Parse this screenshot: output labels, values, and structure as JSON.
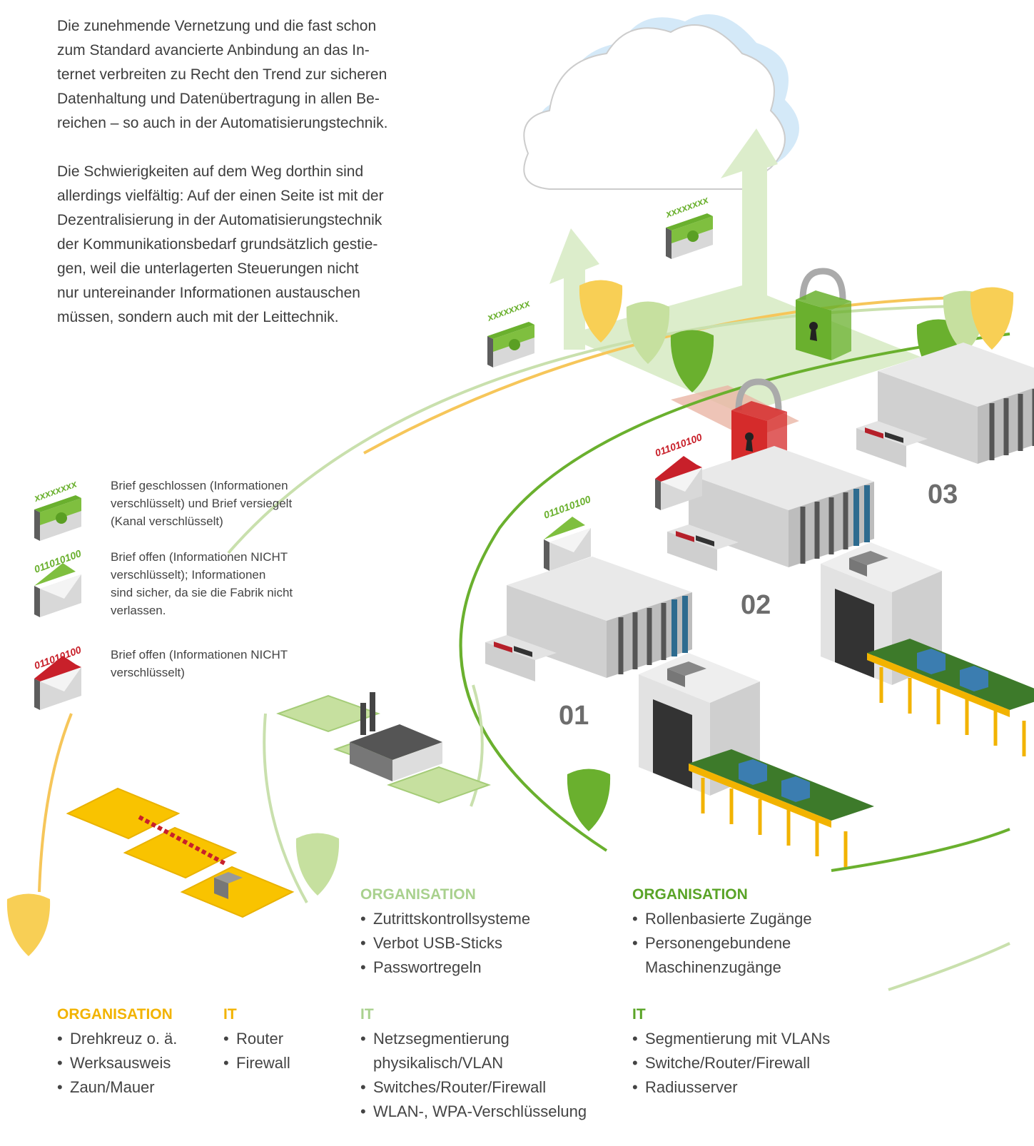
{
  "intro": {
    "paragraphs": [
      [
        "Die zunehmende Vernetzung und die fast schon",
        "zum Standard avancierte Anbindung an das In-",
        "ternet verbreiten zu Recht den Trend zur sicheren",
        "Datenhaltung und Datenübertragung in allen Be-",
        "reichen – so auch in der Automatisierungstechnik."
      ],
      [
        "Die Schwierigkeiten auf dem Weg dorthin sind",
        "allerdings vielfältig: Auf der einen Seite ist mit der",
        "Dezentralisierung in der Automatisierungstechnik",
        "der Kommunikationsbedarf grundsätzlich gestie-",
        "gen, weil die unterlagerten Steuerungen nicht",
        "nur untereinander Informationen austauschen",
        "müssen, sondern auch mit der Leittechnik."
      ]
    ]
  },
  "legend": [
    {
      "code": "xxxxxxxx",
      "lines": [
        "Brief geschlossen (Informationen",
        "verschlüsselt) und Brief versiegelt",
        "(Kanal verschlüsselt)"
      ]
    },
    {
      "code": "011010100",
      "lines": [
        "Brief offen (Informationen NICHT",
        "verschlüsselt); Informationen",
        "sind sicher, da sie die Fabrik nicht",
        "verlassen."
      ]
    },
    {
      "code": "011010100",
      "lines": [
        "Brief offen (Informationen NICHT",
        "verschlüsselt)"
      ]
    }
  ],
  "illustration": {
    "machines": [
      "01",
      "02",
      "03"
    ],
    "envelopes": [
      "xxxxxxxx",
      "xxxxxxxx",
      "011010100",
      "011010100"
    ]
  },
  "groups": [
    {
      "title": "ORGANISATION",
      "items": [
        "Drehkreuz o. ä.",
        "Werksausweis",
        "Zaun/Mauer"
      ]
    },
    {
      "title": "IT",
      "items": [
        "Router",
        "Firewall"
      ]
    },
    {
      "title": "ORGANISATION",
      "items": [
        "Zutrittskontrollsysteme",
        "Verbot USB-Sticks",
        "Passwortregeln"
      ]
    },
    {
      "title": "IT",
      "items": [
        [
          "Netzsegmentierung",
          "physikalisch/VLAN"
        ],
        "Switches/Router/Firewall",
        "WLAN-, WPA-Verschlüsselung"
      ]
    },
    {
      "title": "ORGANISATION",
      "items": [
        "Rollenbasierte Zugänge",
        [
          "Personengebundene",
          "Maschinenzugänge"
        ]
      ]
    },
    {
      "title": "IT",
      "items": [
        "Segmentierung mit VLANs",
        "Switche/Router/Firewall",
        "Radiusserver"
      ]
    }
  ]
}
